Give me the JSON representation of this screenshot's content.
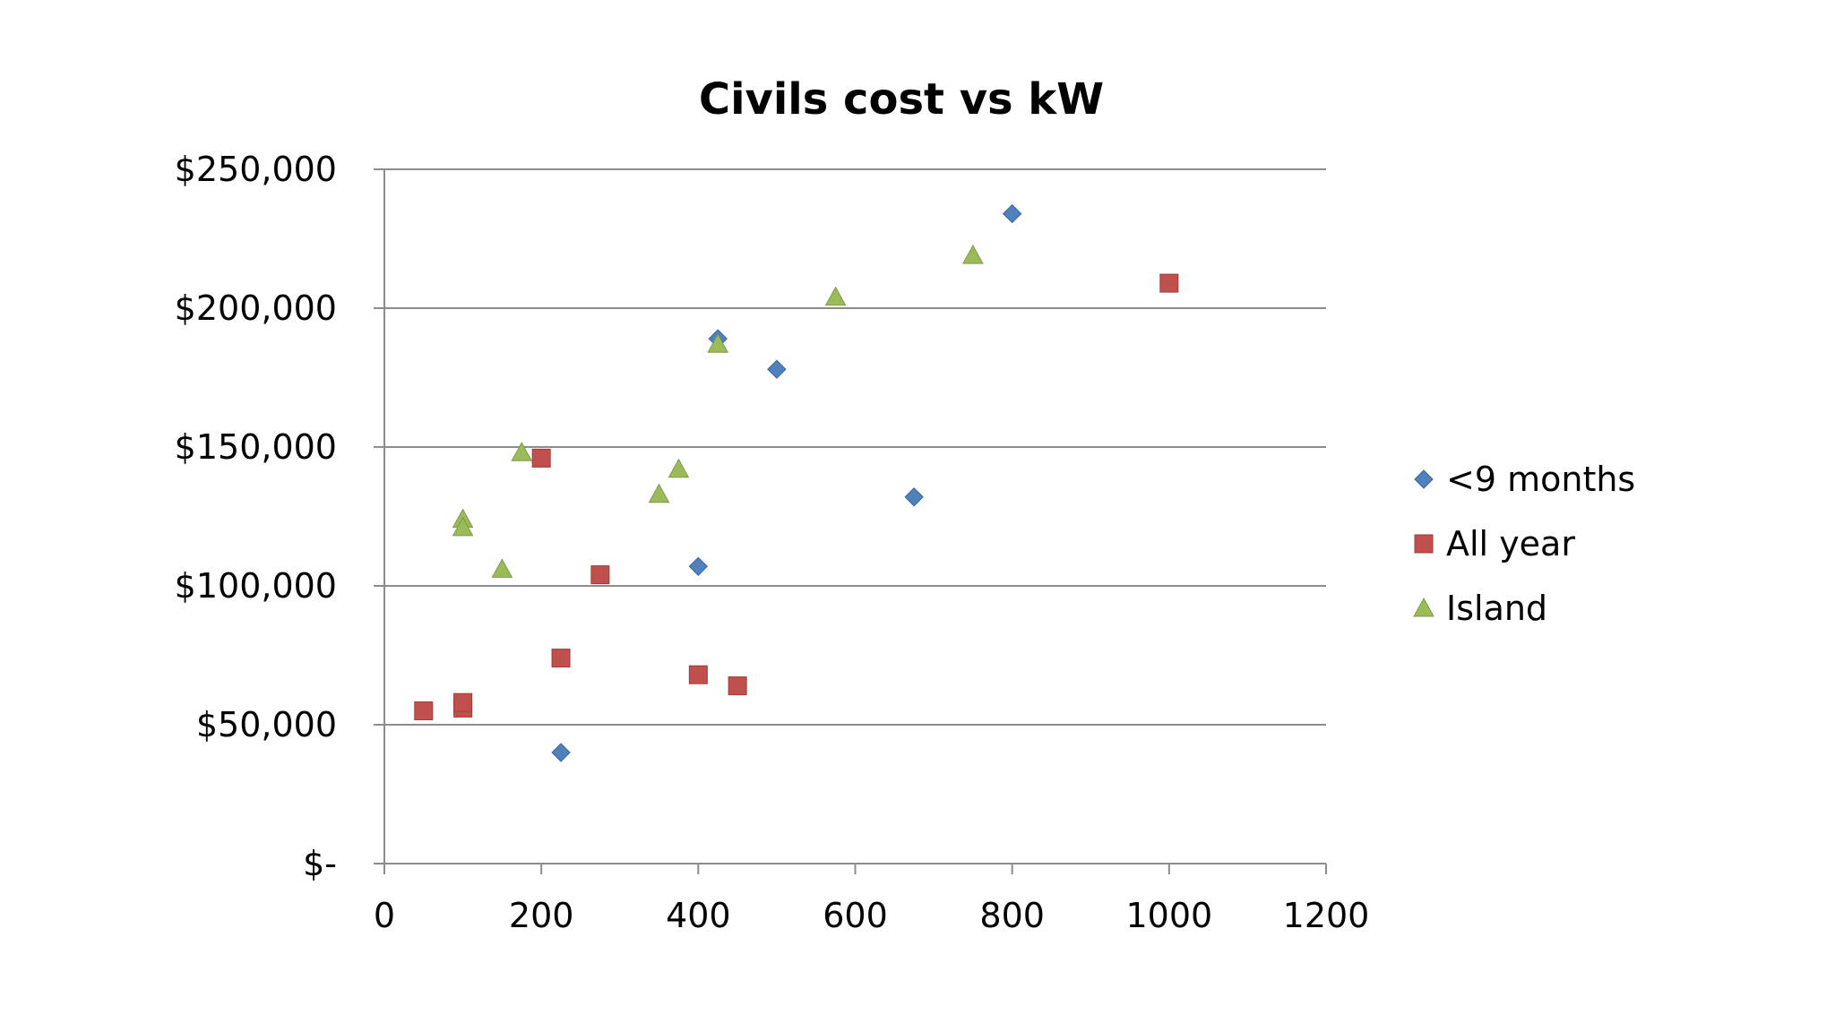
{
  "chart_data": {
    "type": "scatter",
    "title": "Civils cost vs kW",
    "xlabel": "",
    "ylabel": "",
    "xlim": [
      0,
      1200
    ],
    "ylim": [
      0,
      250000
    ],
    "x_ticks": [
      0,
      200,
      400,
      600,
      800,
      1000,
      1200
    ],
    "x_tick_labels": [
      "0",
      "200",
      "400",
      "600",
      "800",
      "1000",
      "1200"
    ],
    "y_ticks": [
      0,
      50000,
      100000,
      150000,
      200000,
      250000
    ],
    "y_tick_labels": [
      "$-",
      "$50,000",
      "$100,000",
      "$150,000",
      "$200,000",
      "$250,000"
    ],
    "grid": "horizontal major gridlines",
    "legend_position": "right",
    "series": [
      {
        "name": "<9 months",
        "marker": "diamond",
        "color": "#4F81BD",
        "points": [
          {
            "x": 225,
            "y": 40000
          },
          {
            "x": 400,
            "y": 107000
          },
          {
            "x": 425,
            "y": 189000
          },
          {
            "x": 500,
            "y": 178000
          },
          {
            "x": 675,
            "y": 132000
          },
          {
            "x": 800,
            "y": 234000
          }
        ]
      },
      {
        "name": "All year",
        "marker": "square",
        "color": "#C0504D",
        "points": [
          {
            "x": 50,
            "y": 55000
          },
          {
            "x": 100,
            "y": 56000
          },
          {
            "x": 100,
            "y": 58000
          },
          {
            "x": 200,
            "y": 146000
          },
          {
            "x": 225,
            "y": 74000
          },
          {
            "x": 275,
            "y": 104000
          },
          {
            "x": 400,
            "y": 68000
          },
          {
            "x": 450,
            "y": 64000
          },
          {
            "x": 1000,
            "y": 209000
          }
        ]
      },
      {
        "name": "Island",
        "marker": "triangle",
        "color": "#9BBB59",
        "points": [
          {
            "x": 100,
            "y": 124000
          },
          {
            "x": 100,
            "y": 121000
          },
          {
            "x": 150,
            "y": 106000
          },
          {
            "x": 175,
            "y": 148000
          },
          {
            "x": 350,
            "y": 133000
          },
          {
            "x": 375,
            "y": 142000
          },
          {
            "x": 425,
            "y": 187000
          },
          {
            "x": 575,
            "y": 204000
          },
          {
            "x": 750,
            "y": 219000
          }
        ]
      }
    ]
  }
}
